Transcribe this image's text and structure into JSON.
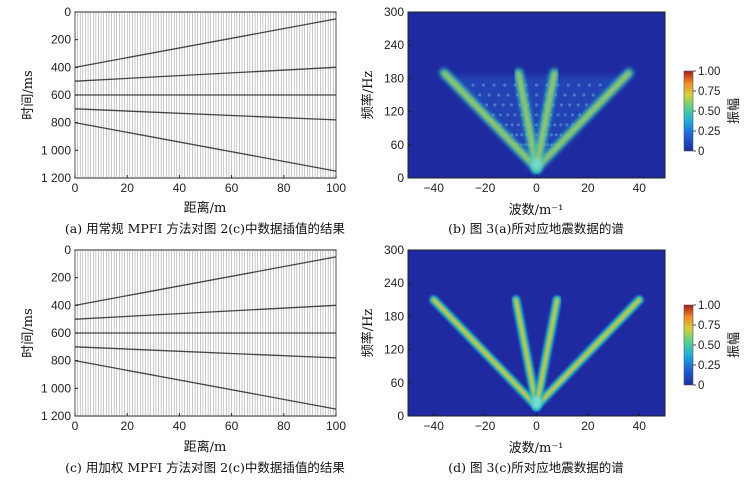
{
  "figure": {
    "panels": [
      {
        "id": "a",
        "kind": "seismic",
        "caption": "(a) 用常规 MPFI 方法对图 2(c)中数据插值的结果",
        "xlabel": "距离/m",
        "ylabel": "时间/ms",
        "xticks": [
          "0",
          "20",
          "40",
          "60",
          "80",
          "100"
        ],
        "yticks": [
          "0",
          "200",
          "400",
          "600",
          "800",
          "1 000",
          "1 200"
        ]
      },
      {
        "id": "b",
        "kind": "spectrum",
        "caption": "(b) 图 3(a)所对应地震数据的谱",
        "xlabel": "波数/m⁻¹",
        "ylabel": "频率/Hz",
        "xticks": [
          "−40",
          "−20",
          "0",
          "20",
          "40"
        ],
        "yticks": [
          "0",
          "60",
          "120",
          "180",
          "240",
          "300"
        ],
        "colorbar_label": "振幅",
        "colorbar_ticks": [
          "1.00",
          "0.75",
          "0.50",
          "0.25",
          "0"
        ]
      },
      {
        "id": "c",
        "kind": "seismic",
        "caption": "(c) 用加权 MPFI 方法对图 2(c)中数据插值的结果",
        "xlabel": "距离/m",
        "ylabel": "时间/ms",
        "xticks": [
          "0",
          "20",
          "40",
          "60",
          "80",
          "100"
        ],
        "yticks": [
          "0",
          "200",
          "400",
          "600",
          "800",
          "1 000",
          "1 200"
        ]
      },
      {
        "id": "d",
        "kind": "spectrum",
        "caption": "(d) 图 3(c)所对应地震数据的谱",
        "xlabel": "波数/m⁻¹",
        "ylabel": "频率/Hz",
        "xticks": [
          "−40",
          "−20",
          "0",
          "20",
          "40"
        ],
        "yticks": [
          "0",
          "60",
          "120",
          "180",
          "240",
          "300"
        ],
        "colorbar_label": "振幅",
        "colorbar_ticks": [
          "1.00",
          "0.75",
          "0.50",
          "0.25",
          "0"
        ]
      }
    ]
  },
  "chart_data": [
    {
      "type": "heatmap",
      "title": "",
      "xlabel": "距离/m",
      "ylabel": "时间/ms",
      "xlim": [
        0,
        100
      ],
      "ylim": [
        1200,
        0
      ],
      "events": [
        {
          "t0": 400,
          "t100": 50
        },
        {
          "t0": 500,
          "t100": 400
        },
        {
          "t0": 600,
          "t100": 600
        },
        {
          "t0": 700,
          "t100": 780
        },
        {
          "t0": 800,
          "t100": 1150
        }
      ]
    },
    {
      "type": "heatmap",
      "title": "",
      "xlabel": "波数/m⁻¹",
      "ylabel": "频率/Hz",
      "xlim": [
        -50,
        50
      ],
      "ylim": [
        0,
        300
      ],
      "colorbar": [
        0,
        1
      ],
      "energy_kx_at_190hz": [
        -36,
        -7,
        0,
        7,
        36
      ],
      "spatial_aliasing": true
    },
    {
      "type": "heatmap",
      "title": "",
      "xlabel": "距离/m",
      "ylabel": "时间/ms",
      "xlim": [
        0,
        100
      ],
      "ylim": [
        1200,
        0
      ],
      "events": [
        {
          "t0": 400,
          "t100": 50
        },
        {
          "t0": 500,
          "t100": 400
        },
        {
          "t0": 600,
          "t100": 600
        },
        {
          "t0": 700,
          "t100": 780
        },
        {
          "t0": 800,
          "t100": 1150
        }
      ]
    },
    {
      "type": "heatmap",
      "title": "",
      "xlabel": "波数/m⁻¹",
      "ylabel": "频率/Hz",
      "xlim": [
        -50,
        50
      ],
      "ylim": [
        0,
        300
      ],
      "colorbar": [
        0,
        1
      ],
      "energy_kx_at_210hz": [
        -40,
        -8,
        0,
        8,
        40
      ],
      "spatial_aliasing": false
    }
  ],
  "colors": {
    "cmap_low": "#1f2aa0",
    "cmap_mid": "#33b4d6",
    "cmap_high": "#9b1b1b",
    "trace": "#8a8a8a",
    "event": "#1a1a1a"
  }
}
